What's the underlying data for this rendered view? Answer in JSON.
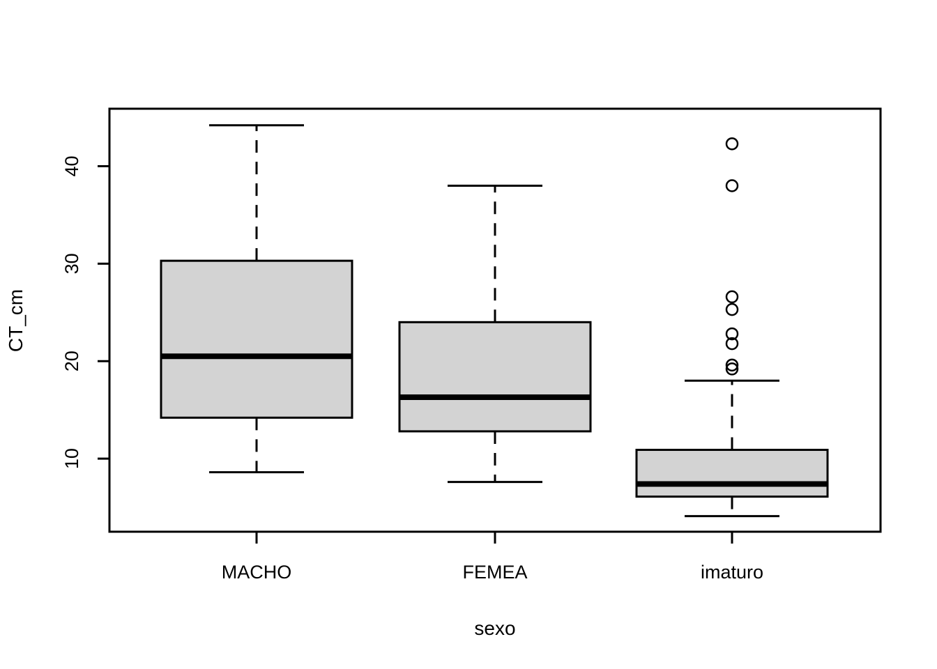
{
  "chart_data": {
    "type": "boxplot",
    "title": "",
    "xlabel": "sexo",
    "ylabel": "CT_cm",
    "categories": [
      "MACHO",
      "FEMEA",
      "imaturo"
    ],
    "y_ticks": [
      10,
      20,
      30,
      40
    ],
    "ylim": [
      2.5,
      45.9
    ],
    "grid": false,
    "legend": "none",
    "series": [
      {
        "name": "MACHO",
        "whisker_low": 8.6,
        "q1": 14.2,
        "median": 20.5,
        "q3": 30.3,
        "whisker_high": 44.2,
        "outliers": []
      },
      {
        "name": "FEMEA",
        "whisker_low": 7.6,
        "q1": 12.8,
        "median": 16.3,
        "q3": 24.0,
        "whisker_high": 38.0,
        "outliers": []
      },
      {
        "name": "imaturo",
        "whisker_low": 4.1,
        "q1": 6.1,
        "median": 7.4,
        "q3": 10.9,
        "whisker_high": 18.0,
        "outliers": [
          19.2,
          19.6,
          21.8,
          22.8,
          25.3,
          26.6,
          38.0,
          42.3
        ]
      }
    ],
    "colors": {
      "box_fill": "#D3D3D3",
      "stroke": "#000000",
      "background": "#FFFFFF"
    }
  }
}
